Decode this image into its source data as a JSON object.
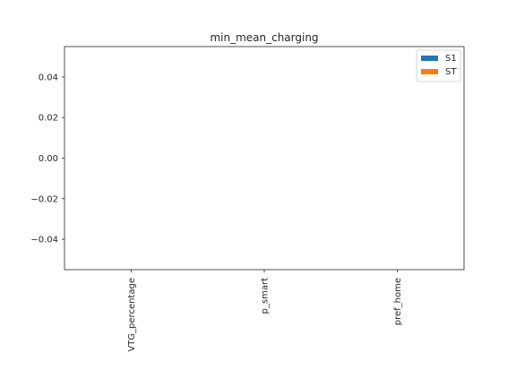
{
  "chart_data": {
    "type": "bar",
    "title": "min_mean_charging",
    "xlabel": "",
    "ylabel": "",
    "categories": [
      "VTG_percentage",
      "p_smart",
      "pref_home"
    ],
    "series": [
      {
        "name": "S1",
        "values": [
          0,
          0,
          0
        ],
        "color": "#1f77b4"
      },
      {
        "name": "ST",
        "values": [
          0,
          0,
          0
        ],
        "color": "#ff7f0e"
      }
    ],
    "ylim": [
      -0.055,
      0.055
    ],
    "yticks": [
      0.04,
      0.02,
      0.0,
      -0.02,
      -0.04
    ],
    "ytick_labels": [
      "0.04",
      "0.02",
      "0.00",
      "−0.02",
      "−0.04"
    ],
    "grid": false,
    "legend_position": "top-right",
    "x_tick_rotation": "vertical"
  }
}
